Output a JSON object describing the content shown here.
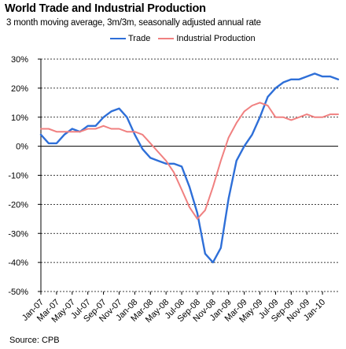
{
  "title": "World Trade and Industrial Production",
  "subtitle": "3 month moving average, 3m/3m, seasonally adjusted annual rate",
  "source": "Source: CPB",
  "chart_data": {
    "type": "line",
    "title": "World Trade and Industrial Production",
    "subtitle": "3 month moving average, 3m/3m, seasonally adjusted annual rate",
    "xlabel": "",
    "ylabel": "",
    "ylim": [
      -50,
      30
    ],
    "yticks": [
      30,
      20,
      10,
      0,
      -10,
      -20,
      -30,
      -40,
      -50
    ],
    "ytick_labels": [
      "30%",
      "20%",
      "10%",
      "0%",
      "-10%",
      "-20%",
      "-30%",
      "-40%",
      "-50%"
    ],
    "grid": true,
    "legend": "top-center",
    "x": [
      "Jan-07",
      "Feb-07",
      "Mar-07",
      "Apr-07",
      "May-07",
      "Jun-07",
      "Jul-07",
      "Aug-07",
      "Sep-07",
      "Oct-07",
      "Nov-07",
      "Dec-07",
      "Jan-08",
      "Feb-08",
      "Mar-08",
      "Apr-08",
      "May-08",
      "Jun-08",
      "Jul-08",
      "Aug-08",
      "Sep-08",
      "Oct-08",
      "Nov-08",
      "Dec-08",
      "Jan-09",
      "Feb-09",
      "Mar-09",
      "Apr-09",
      "May-09",
      "Jun-09",
      "Jul-09",
      "Aug-09",
      "Sep-09",
      "Oct-09",
      "Nov-09",
      "Dec-09",
      "Jan-10",
      "Feb-10",
      "Mar-10"
    ],
    "xtick_labels": [
      "Jan-07",
      "Mar-07",
      "May-07",
      "Jul-07",
      "Sep-07",
      "Nov-07",
      "Jan-08",
      "Mar-08",
      "May-08",
      "Jul-08",
      "Sep-08",
      "Nov-08",
      "Jan-09",
      "Mar-09",
      "May-09",
      "Jul-09",
      "Sep-09",
      "Nov-09",
      "Jan-10"
    ],
    "series": [
      {
        "name": "Trade",
        "color": "#2e6fd8",
        "values": [
          4,
          1,
          1,
          4,
          6,
          5,
          7,
          7,
          10,
          12,
          13,
          10,
          4,
          -1,
          -4,
          -5,
          -6,
          -6,
          -7,
          -14,
          -23,
          -37,
          -40,
          -35,
          -18,
          -5,
          0,
          4,
          10,
          17,
          20,
          22,
          23,
          23,
          24,
          25,
          24,
          24,
          23
        ]
      },
      {
        "name": "Industrial Production",
        "color": "#f08080",
        "values": [
          6,
          6,
          5,
          5,
          5,
          5,
          6,
          6,
          7,
          6,
          6,
          5,
          5,
          4,
          1,
          -2,
          -5,
          -9,
          -15,
          -21,
          -25,
          -22,
          -14,
          -5,
          3,
          8,
          12,
          14,
          15,
          14,
          10,
          10,
          9,
          10,
          11,
          10,
          10,
          11,
          11
        ]
      }
    ]
  }
}
